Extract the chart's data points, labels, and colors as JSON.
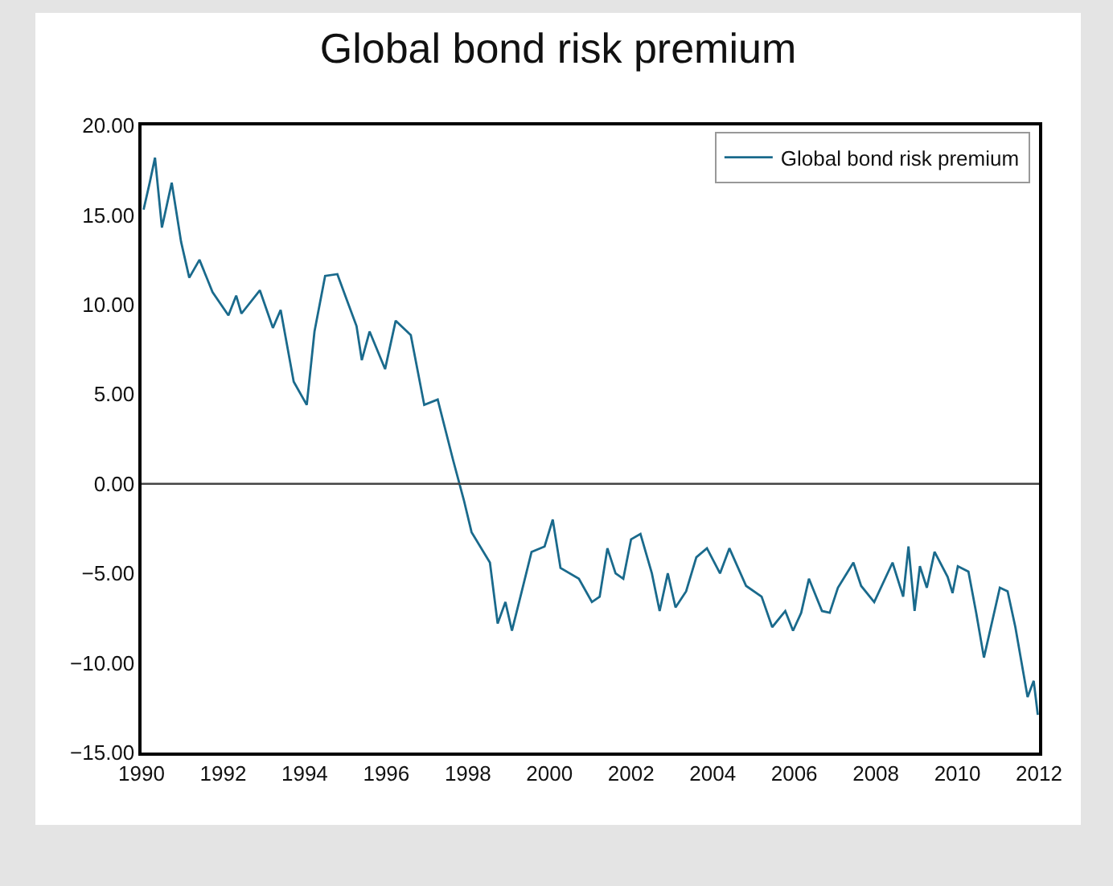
{
  "chart_data": {
    "type": "line",
    "title": "Global bond risk premium",
    "series": [
      {
        "name": "Global bond risk premium",
        "color": "#1a6a8c",
        "x": [
          1990.05,
          1990.2,
          1990.33,
          1990.5,
          1990.74,
          1990.97,
          1991.17,
          1991.42,
          1991.74,
          1992.13,
          1992.32,
          1992.45,
          1992.9,
          1993.22,
          1993.41,
          1993.73,
          1994.05,
          1994.24,
          1994.5,
          1994.8,
          1995.01,
          1995.27,
          1995.4,
          1995.59,
          1995.97,
          1996.23,
          1996.6,
          1996.93,
          1997.26,
          1997.64,
          1997.9,
          1998.09,
          1998.54,
          1998.73,
          1998.92,
          1999.08,
          1999.31,
          1999.56,
          1999.88,
          2000.08,
          2000.27,
          2000.72,
          2001.04,
          2001.23,
          2001.42,
          2001.62,
          2001.81,
          2002.0,
          2002.23,
          2002.51,
          2002.7,
          2002.9,
          2003.09,
          2003.35,
          2003.6,
          2003.86,
          2004.18,
          2004.41,
          2004.82,
          2005.2,
          2005.46,
          2005.78,
          2005.97,
          2006.17,
          2006.36,
          2006.68,
          2006.87,
          2007.07,
          2007.45,
          2007.64,
          2007.96,
          2008.41,
          2008.67,
          2008.8,
          2008.95,
          2009.08,
          2009.25,
          2009.44,
          2009.76,
          2009.88,
          2010.01,
          2010.27,
          2010.46,
          2010.65,
          2011.04,
          2011.23,
          2011.42,
          2011.72,
          2011.87,
          2011.97
        ],
        "values": [
          15.3,
          16.8,
          18.2,
          14.3,
          16.8,
          13.5,
          11.5,
          12.5,
          10.7,
          9.4,
          10.5,
          9.5,
          10.8,
          8.7,
          9.7,
          5.7,
          4.4,
          8.5,
          11.6,
          11.7,
          10.4,
          8.8,
          6.9,
          8.5,
          6.4,
          9.1,
          8.3,
          4.4,
          4.7,
          1.3,
          -0.9,
          -2.7,
          -4.4,
          -7.8,
          -6.6,
          -8.2,
          -6.1,
          -3.8,
          -3.5,
          -2.0,
          -4.7,
          -5.3,
          -6.6,
          -6.3,
          -3.6,
          -5.0,
          -5.3,
          -3.1,
          -2.8,
          -5.0,
          -7.1,
          -5.0,
          -6.9,
          -6.0,
          -4.1,
          -3.6,
          -5.0,
          -3.6,
          -5.7,
          -6.3,
          -8.0,
          -7.1,
          -8.2,
          -7.2,
          -5.3,
          -7.1,
          -7.2,
          -5.8,
          -4.4,
          -5.7,
          -6.6,
          -4.4,
          -6.3,
          -3.5,
          -7.1,
          -4.6,
          -5.8,
          -3.8,
          -5.2,
          -6.1,
          -4.6,
          -4.9,
          -7.2,
          -9.7,
          -5.8,
          -6.0,
          -8.0,
          -11.9,
          -11.0,
          -12.9
        ]
      }
    ],
    "xlim": [
      1990,
      2012
    ],
    "xticks": [
      1990,
      1992,
      1994,
      1996,
      1998,
      2000,
      2002,
      2004,
      2006,
      2008,
      2010,
      2012
    ],
    "ylim": [
      -15,
      20
    ],
    "yticks": [
      {
        "value": -15,
        "label": "−15.00"
      },
      {
        "value": -10,
        "label": "−10.00"
      },
      {
        "value": -5,
        "label": "−5.00"
      },
      {
        "value": 0,
        "label": "0.00"
      },
      {
        "value": 5,
        "label": "5.00"
      },
      {
        "value": 10,
        "label": "10.00"
      },
      {
        "value": 15,
        "label": "15.00"
      },
      {
        "value": 20,
        "label": "20.00"
      }
    ],
    "ref_lines": [
      {
        "axis": "y",
        "value": 0,
        "color": "#444444"
      }
    ],
    "grid": false,
    "legend": "top right",
    "marker": "none",
    "line_style": "solid"
  }
}
